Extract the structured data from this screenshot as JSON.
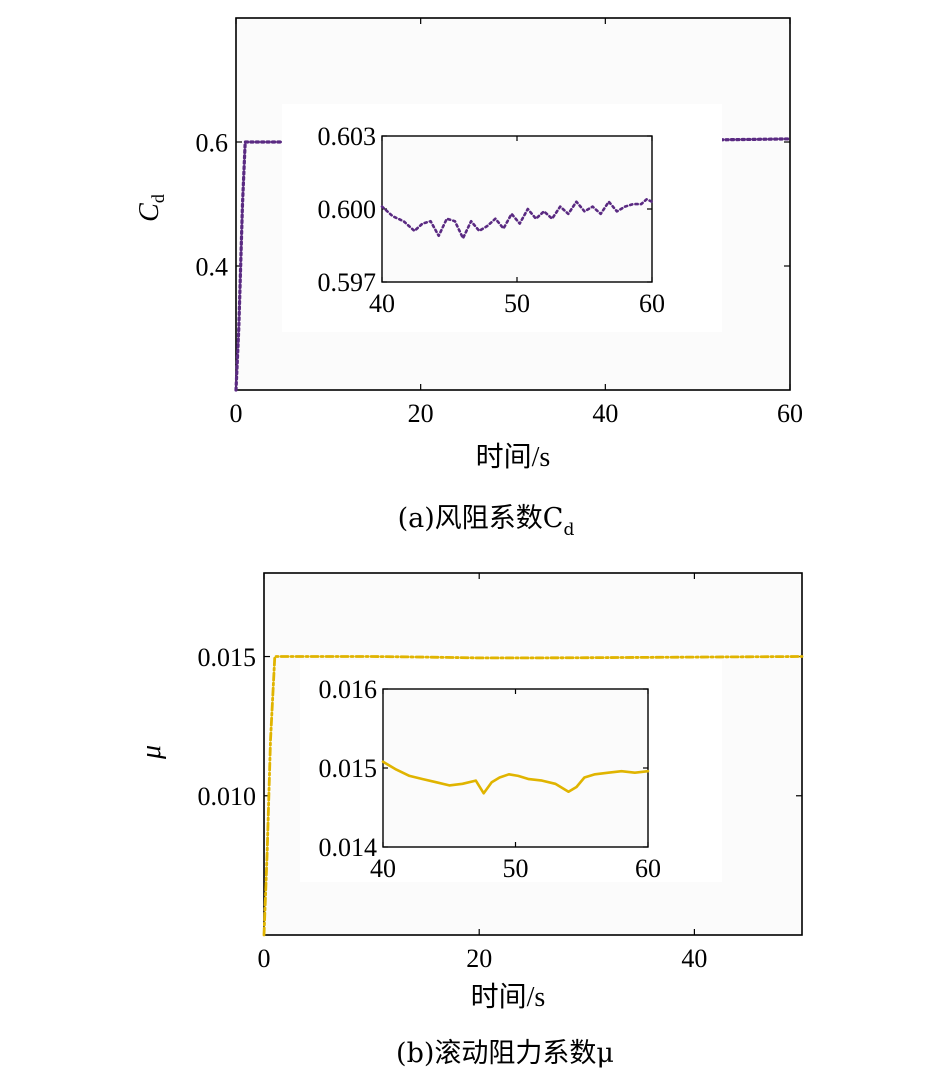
{
  "chart_data": [
    {
      "type": "line",
      "ylabel": "C",
      "ylabel_sub": "d",
      "xlabel": "时间/s",
      "caption": "(a)风阻系数C",
      "caption_sub": "d",
      "xlim": [
        0,
        60
      ],
      "ylim": [
        0.2,
        0.8
      ],
      "xticks": [
        0,
        20,
        40,
        60
      ],
      "xtick_labels": [
        "0",
        "20",
        "40",
        "60"
      ],
      "yticks": [
        0.4,
        0.6
      ],
      "ytick_labels": [
        "0.4",
        "0.6"
      ],
      "grid": false,
      "series": [
        {
          "color": "#5a2a82",
          "style": "dotted",
          "x": [
            0,
            0.3,
            0.7,
            1.0,
            1.5,
            5,
            10,
            15,
            20,
            25,
            30,
            35,
            40,
            45,
            50,
            55,
            60
          ],
          "y": [
            0.2,
            0.3,
            0.5,
            0.6,
            0.6,
            0.6,
            0.601,
            0.601,
            0.601,
            0.602,
            0.602,
            0.602,
            0.602,
            0.603,
            0.603,
            0.604,
            0.605
          ]
        }
      ],
      "inset": {
        "xlim": [
          40,
          60
        ],
        "ylim": [
          0.597,
          0.603
        ],
        "xticks": [
          40,
          50,
          60
        ],
        "xtick_labels": [
          "40",
          "50",
          "60"
        ],
        "yticks": [
          0.597,
          0.6,
          0.603
        ],
        "ytick_labels": [
          "0.597",
          "0.600",
          "0.603"
        ],
        "series": [
          {
            "color": "#5a2a82",
            "style": "dotted",
            "x": [
              40,
              40.8,
              41.6,
              42.4,
              43.0,
              43.6,
              44.2,
              44.8,
              45.4,
              46.0,
              46.6,
              47.2,
              47.8,
              48.4,
              49.0,
              49.6,
              50.2,
              50.8,
              51.4,
              52.0,
              52.6,
              53.2,
              53.8,
              54.4,
              55.0,
              55.6,
              56.2,
              56.8,
              57.4,
              58.0,
              58.6,
              59.2,
              59.6,
              60
            ],
            "y": [
              0.6001,
              0.5997,
              0.5995,
              0.5991,
              0.5994,
              0.5995,
              0.5989,
              0.5996,
              0.5995,
              0.5988,
              0.5995,
              0.5991,
              0.5993,
              0.5996,
              0.5992,
              0.5998,
              0.5994,
              0.6,
              0.5996,
              0.5999,
              0.5996,
              0.6001,
              0.5998,
              0.6003,
              0.5999,
              0.6001,
              0.5998,
              0.6003,
              0.5999,
              0.6001,
              0.6002,
              0.6002,
              0.6004,
              0.6003
            ]
          }
        ]
      }
    },
    {
      "type": "line",
      "ylabel": "μ",
      "xlabel": "时间/s",
      "caption": "(b)滚动阻力系数μ",
      "xlim": [
        0,
        50
      ],
      "ylim": [
        0.005,
        0.018
      ],
      "xticks": [
        0,
        20,
        40
      ],
      "xtick_labels": [
        "0",
        "20",
        "40"
      ],
      "yticks": [
        0.01,
        0.015
      ],
      "ytick_labels": [
        "0.010",
        "0.015"
      ],
      "grid": false,
      "series": [
        {
          "color": "#e0b400",
          "style": "dashdot",
          "x": [
            0,
            0.3,
            0.6,
            1.0,
            1.5,
            5,
            10,
            15,
            20,
            25,
            30,
            35,
            40,
            45,
            50
          ],
          "y": [
            0.005,
            0.008,
            0.012,
            0.015,
            0.015,
            0.015,
            0.015,
            0.01498,
            0.01495,
            0.01495,
            0.01496,
            0.01497,
            0.01498,
            0.01499,
            0.015
          ]
        }
      ],
      "inset": {
        "xlim": [
          40,
          60
        ],
        "ylim": [
          0.014,
          0.016
        ],
        "xticks": [
          40,
          50,
          60
        ],
        "xtick_labels": [
          "40",
          "50",
          "60"
        ],
        "yticks": [
          0.014,
          0.015,
          0.016
        ],
        "ytick_labels": [
          "0.014",
          "0.015",
          "0.016"
        ],
        "series": [
          {
            "color": "#e0b400",
            "style": "solid",
            "x": [
              40,
              41,
              42,
              43,
              44,
              45,
              46,
              47,
              47.6,
              48.2,
              48.8,
              49.5,
              50.2,
              51,
              52,
              53,
              54,
              54.6,
              55.2,
              56,
              57,
              58,
              59,
              60
            ],
            "y": [
              0.01508,
              0.01498,
              0.0149,
              0.01486,
              0.01482,
              0.01478,
              0.0148,
              0.01484,
              0.01468,
              0.01482,
              0.01488,
              0.01492,
              0.0149,
              0.01486,
              0.01484,
              0.0148,
              0.0147,
              0.01476,
              0.01488,
              0.01492,
              0.01494,
              0.01496,
              0.01494,
              0.01496
            ]
          }
        ]
      }
    }
  ]
}
